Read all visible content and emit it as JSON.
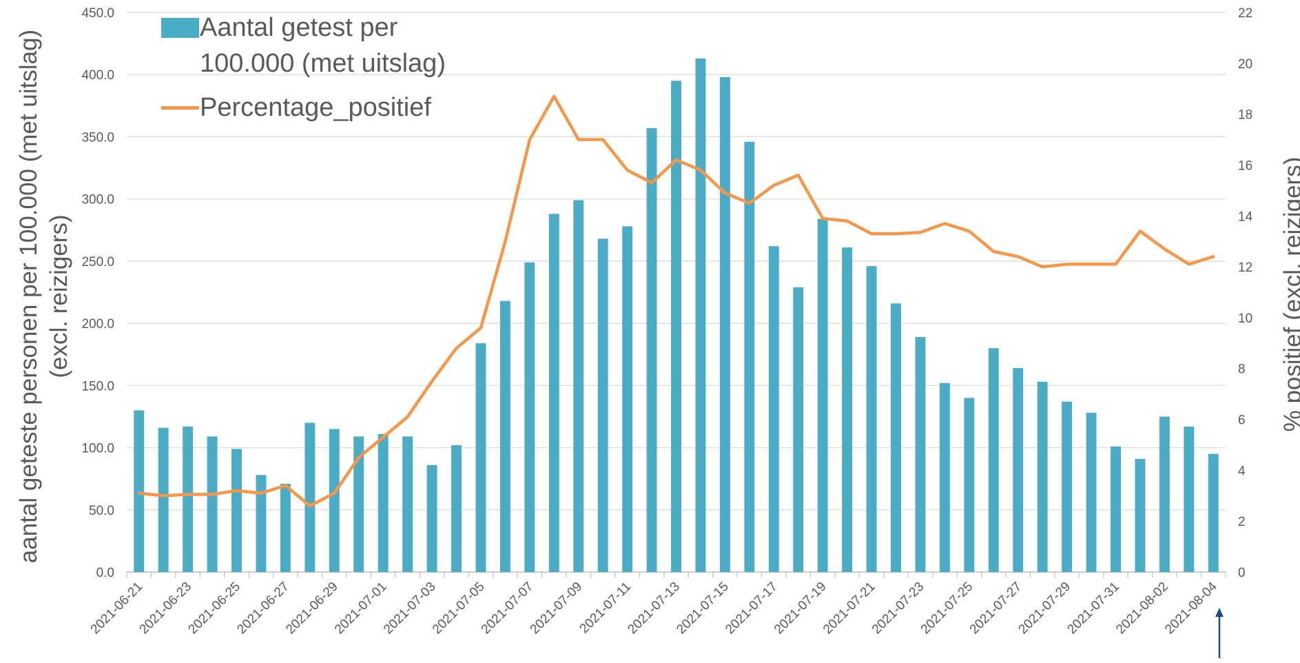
{
  "chart_data": {
    "type": "bar",
    "y_label": "aantal geteste personen per 100.000 (met uitslag) (excl. reizigers)",
    "y2_label": "% positief (excl. reizigers)",
    "categories": [
      "2021-06-21",
      null,
      "2021-06-23",
      null,
      "2021-06-25",
      null,
      "2021-06-27",
      null,
      "2021-06-29",
      null,
      "2021-07-01",
      null,
      "2021-07-03",
      null,
      "2021-07-05",
      null,
      "2021-07-07",
      null,
      "2021-07-09",
      null,
      "2021-07-11",
      null,
      "2021-07-13",
      null,
      "2021-07-15",
      null,
      "2021-07-17",
      null,
      "2021-07-19",
      null,
      "2021-07-21",
      null,
      "2021-07-23",
      null,
      "2021-07-25",
      null,
      "2021-07-27",
      null,
      "2021-07-29",
      null,
      "2021-07-31",
      null,
      "2021-08-02",
      null,
      "2021-08-04"
    ],
    "series": [
      {
        "name": "Aantal getest per 100.000 (met uitslag)",
        "color": "#4bacc6",
        "values": [
          130,
          116,
          117,
          109,
          99,
          78,
          71,
          120,
          115,
          109,
          111,
          109,
          86,
          102,
          184,
          218,
          249,
          288,
          299,
          268,
          278,
          357,
          395,
          413,
          398,
          346,
          262,
          229,
          284,
          261,
          246,
          216,
          189,
          152,
          140,
          180,
          164,
          153,
          137,
          128,
          101,
          91,
          125,
          117,
          95
        ]
      },
      {
        "name": "Percentage_positief",
        "color": "#f79646",
        "type": "line",
        "axis": "y2",
        "values": [
          3.1,
          3.0,
          3.05,
          3.05,
          3.2,
          3.1,
          3.4,
          2.6,
          3.1,
          4.5,
          5.3,
          6.1,
          7.5,
          8.8,
          9.6,
          13.0,
          17.0,
          18.7,
          17.0,
          17.0,
          15.8,
          15.3,
          16.2,
          15.8,
          14.9,
          14.5,
          15.2,
          15.6,
          13.9,
          13.8,
          13.3,
          13.3,
          13.35,
          13.7,
          13.4,
          12.6,
          12.4,
          12.0,
          12.1,
          12.1,
          12.1,
          13.4,
          12.7,
          12.1,
          12.4
        ]
      }
    ],
    "ylim": [
      0,
      450
    ],
    "yticks": [
      {
        "value": 0,
        "label": "0.0"
      },
      {
        "value": 50,
        "label": "50.0"
      },
      {
        "value": 100,
        "label": "100.0"
      },
      {
        "value": 150,
        "label": "150.0"
      },
      {
        "value": 200,
        "label": "200.0"
      },
      {
        "value": 250,
        "label": "250.0"
      },
      {
        "value": 300,
        "label": "300.0"
      },
      {
        "value": 350,
        "label": "350.0"
      },
      {
        "value": 400,
        "label": "400.0"
      },
      {
        "value": 450,
        "label": "450.0"
      }
    ],
    "y2lim": [
      0,
      22
    ],
    "y2ticks": [
      0,
      2,
      4,
      6,
      8,
      10,
      12,
      14,
      16,
      18,
      20,
      22
    ],
    "grid": true
  }
}
